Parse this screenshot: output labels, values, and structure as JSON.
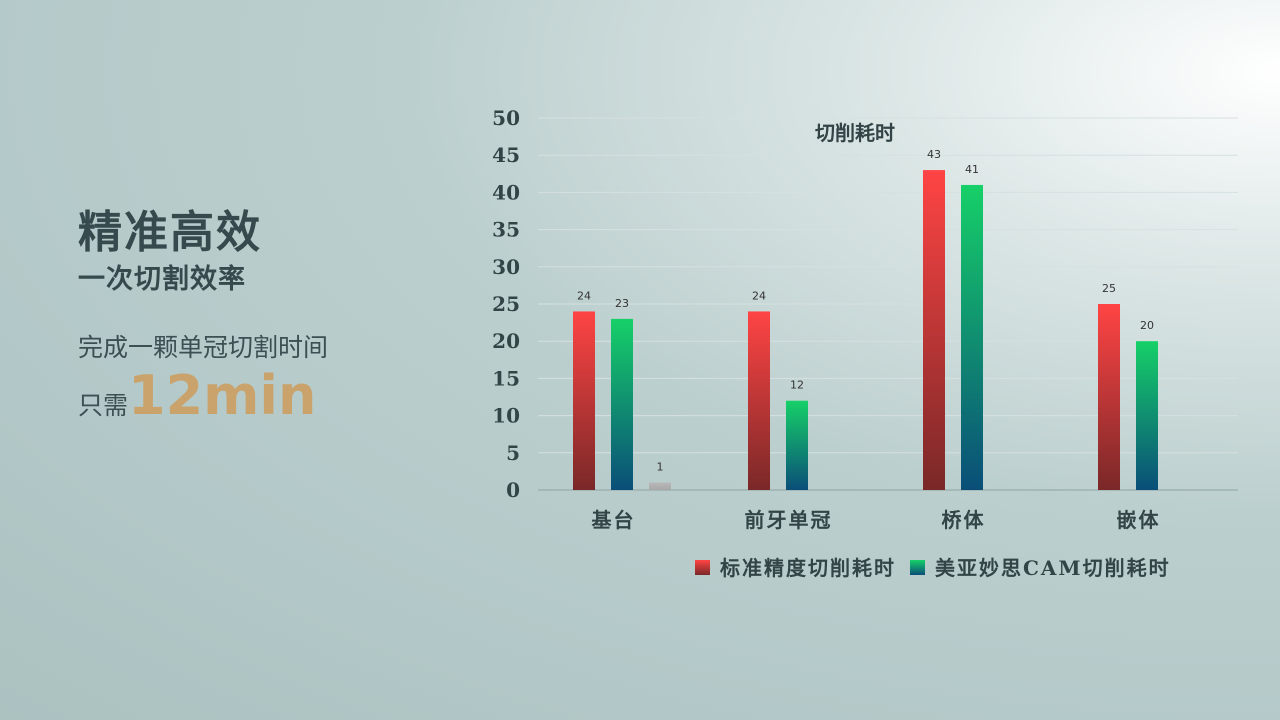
{
  "slide": {
    "title": "精准高效",
    "subtitle": "一次切割效率",
    "description": "完成一颗单冠切割时间",
    "highlight_prefix": "只需",
    "highlight_value": "12min"
  },
  "chart_data": {
    "type": "bar",
    "title": "切削耗时",
    "categories": [
      "基台",
      "前牙单冠",
      "桥体",
      "嵌体"
    ],
    "series": [
      {
        "name": "标准精度切削耗时",
        "values": [
          24,
          24,
          43,
          25
        ],
        "color_top": "#ff4444",
        "color_bottom": "#7a2828"
      },
      {
        "name": "美亚妙思CAM切削耗时",
        "values": [
          23,
          12,
          41,
          20
        ],
        "color_top": "#16d068",
        "color_bottom": "#0a4e78"
      },
      {
        "name": "",
        "values": [
          1,
          null,
          null,
          null
        ],
        "color_top": "#b8b8b8",
        "color_bottom": "#a8a8a8"
      }
    ],
    "ylim": [
      0,
      50
    ],
    "yticks": [
      0,
      5,
      10,
      15,
      20,
      25,
      30,
      35,
      40,
      45,
      50
    ],
    "grid": true,
    "legend": "bottom",
    "xlabel": "",
    "ylabel": ""
  }
}
